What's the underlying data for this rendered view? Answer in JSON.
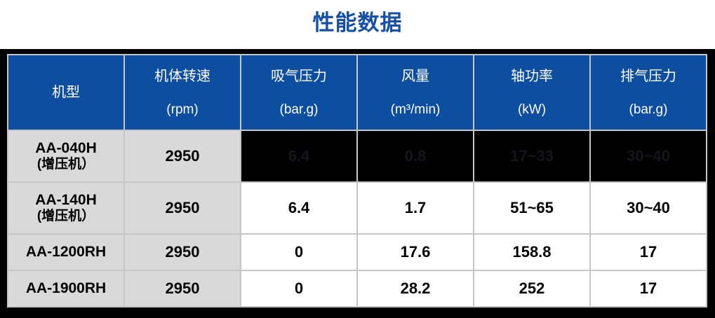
{
  "title": "性能数据",
  "colors": {
    "title_color": "#1450A5",
    "header_bg": "#0E4EA0",
    "model_bg": "#D9D9D9",
    "masked_bg": "#000000",
    "masked_text": "#15151B",
    "frame_bg": "#000000",
    "grid": "#C6C6C6"
  },
  "table": {
    "columns": [
      {
        "label": "机型",
        "unit": ""
      },
      {
        "label": "机体转速",
        "unit": "(rpm)"
      },
      {
        "label": "吸气压力",
        "unit": "(bar.g)"
      },
      {
        "label": "风量",
        "unit": "(m³/min)"
      },
      {
        "label": "轴功率",
        "unit": "(kW)"
      },
      {
        "label": "排气压力",
        "unit": "(bar.g)"
      }
    ],
    "rows": [
      {
        "model": "AA-040H",
        "note": "(增压机）",
        "speed": "2950",
        "values": [
          "6.4",
          "0.8",
          "17~33",
          "30~40"
        ],
        "values_masked": true
      },
      {
        "model": "AA-140H",
        "note": "(增压机）",
        "speed": "2950",
        "values": [
          "6.4",
          "1.7",
          "51~65",
          "30~40"
        ],
        "values_masked": false
      },
      {
        "model": "AA-1200RH",
        "note": "",
        "speed": "2950",
        "values": [
          "0",
          "17.6",
          "158.8",
          "17"
        ],
        "values_masked": false
      },
      {
        "model": "AA-1900RH",
        "note": "",
        "speed": "2950",
        "values": [
          "0",
          "28.2",
          "252",
          "17"
        ],
        "values_masked": false
      }
    ]
  }
}
